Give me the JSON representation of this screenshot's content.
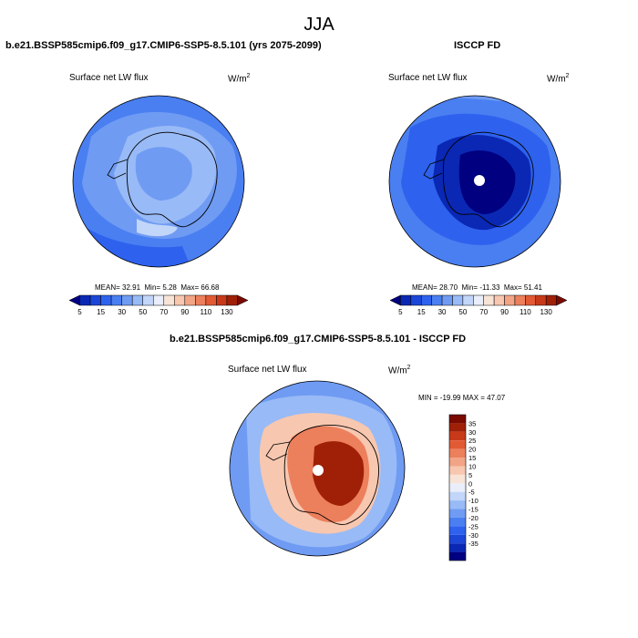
{
  "season": "JJA",
  "colors": {
    "blue_scale": [
      "#000080",
      "#0a28b4",
      "#1c46d8",
      "#2e62ee",
      "#4a7ff2",
      "#6f9bf3",
      "#98baf6",
      "#c2d6f9",
      "#e9eefa"
    ],
    "warm_scale": [
      "#f8e4d6",
      "#f7c7b0",
      "#f2a486",
      "#ec7f5c",
      "#e15a34",
      "#c8391a",
      "#a02007",
      "#7a0a00"
    ],
    "diff_scale": [
      "#000080",
      "#0a28b4",
      "#1c46d8",
      "#2e62ee",
      "#4a7ff2",
      "#6f9bf3",
      "#98baf6",
      "#c2d6f9",
      "#e9eefa",
      "#f8e4d6",
      "#f7c7b0",
      "#f2a486",
      "#ec7f5c",
      "#e15a34",
      "#c8391a",
      "#a02007",
      "#7a0a00"
    ]
  },
  "chart_data": [
    {
      "type": "heatmap",
      "projection": "south-polar-stereographic",
      "title": "b.e21.BSSP585cmip6.f09_g17.CMIP6-SSP5-8.5.101 (yrs 2075-2099)",
      "variable": "Surface net LW flux",
      "units_base": "W/m",
      "units_exp": "2",
      "stats": {
        "mean_label": "MEAN=",
        "mean": "32.91",
        "min_label": "Min=",
        "min": "5.28",
        "max_label": "Max=",
        "max": "66.68"
      },
      "levels": [
        "5",
        "15",
        "30",
        "50",
        "70",
        "90",
        "110",
        "130"
      ],
      "field": [
        {
          "region": "ocean-background",
          "value": 40
        },
        {
          "region": "circumpolar-band",
          "value": 50
        },
        {
          "region": "antarctic-interior",
          "value": 45
        },
        {
          "region": "coastal-patches",
          "value": 60
        }
      ]
    },
    {
      "type": "heatmap",
      "projection": "south-polar-stereographic",
      "title": "ISCCP FD",
      "variable": "Surface net LW flux",
      "units_base": "W/m",
      "units_exp": "2",
      "stats": {
        "mean_label": "MEAN=",
        "mean": "28.70",
        "min_label": "Min=",
        "min": "-11.33",
        "max_label": "Max=",
        "max": "51.41"
      },
      "levels": [
        "5",
        "15",
        "30",
        "50",
        "70",
        "90",
        "110",
        "130"
      ],
      "field": [
        {
          "region": "ocean-background",
          "value": 45
        },
        {
          "region": "sea-ice-zone",
          "value": 30
        },
        {
          "region": "antarctic-interior",
          "value": 12
        },
        {
          "region": "plateau-core",
          "value": 3
        }
      ]
    },
    {
      "type": "heatmap",
      "projection": "south-polar-stereographic",
      "title": "b.e21.BSSP585cmip6.f09_g17.CMIP6-SSP5-8.5.101 - ISCCP FD",
      "variable": "Surface net LW flux",
      "units_base": "W/m",
      "units_exp": "2",
      "stats_text": "MIN = -19.99 MAX = 47.07",
      "levels": [
        "35",
        "30",
        "25",
        "20",
        "15",
        "10",
        "5",
        "0",
        "-5",
        "-10",
        "-15",
        "-20",
        "-25",
        "-30",
        "-35"
      ],
      "field": [
        {
          "region": "ocean-background",
          "value": -10
        },
        {
          "region": "sea-ice-zone",
          "value": 5
        },
        {
          "region": "antarctic-interior",
          "value": 25
        },
        {
          "region": "plateau-core",
          "value": 38
        }
      ]
    }
  ]
}
